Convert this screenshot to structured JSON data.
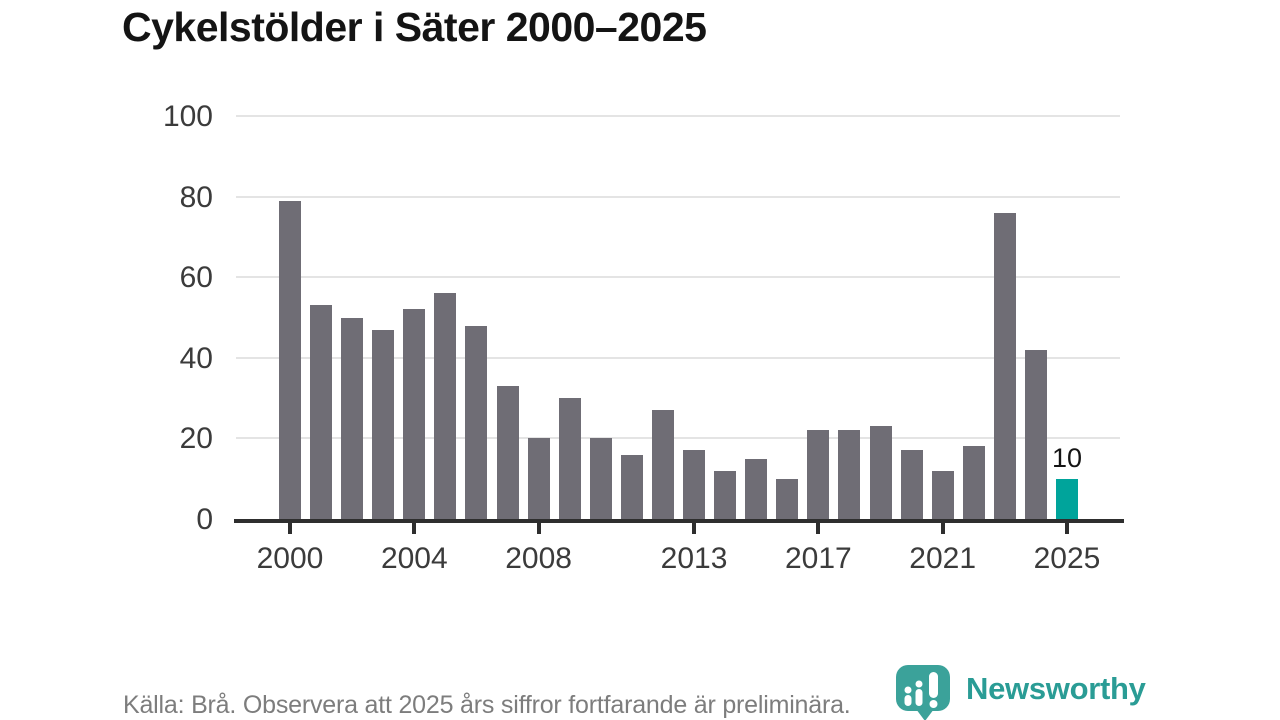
{
  "title": "Cykelstölder i Säter 2000–2025",
  "footer": {
    "source_note": "Källa: Brå. Observera att 2025 års siffror fortfarande är preliminära."
  },
  "branding": {
    "logo_text": "Newsworthy",
    "logo_icon": "newsworthy-pin-barchart-icon",
    "wordmark_color": "#2a9c95",
    "icon_color": "#3ba29a"
  },
  "colors": {
    "bar_default": "#6f6d75",
    "bar_highlight": "#00a49b",
    "gridline": "#e4e4e4",
    "axis": "#2e2e2e",
    "axis_text": "#3b3b3b",
    "title_text": "#141414",
    "muted_text": "#7d7d7d"
  },
  "chart_data": {
    "type": "bar",
    "title": "Cykelstölder i Säter 2000–2025",
    "x": [
      2000,
      2001,
      2002,
      2003,
      2004,
      2005,
      2006,
      2007,
      2008,
      2009,
      2010,
      2011,
      2012,
      2013,
      2014,
      2015,
      2016,
      2017,
      2018,
      2019,
      2020,
      2021,
      2022,
      2023,
      2024,
      2025
    ],
    "values": [
      79,
      53,
      50,
      47,
      52,
      56,
      48,
      33,
      20,
      30,
      20,
      16,
      27,
      17,
      12,
      15,
      10,
      22,
      22,
      23,
      17,
      12,
      18,
      76,
      42,
      10
    ],
    "highlight_index": 25,
    "highlight_label": "10",
    "y_ticks": [
      0,
      20,
      40,
      60,
      80,
      100
    ],
    "x_tick_labels": [
      "2000",
      "2004",
      "2008",
      "2013",
      "2017",
      "2021",
      "2025"
    ],
    "ylim": [
      0,
      100
    ],
    "grid": "horizontal-only",
    "legend": "none",
    "xlabel": "",
    "ylabel": ""
  }
}
